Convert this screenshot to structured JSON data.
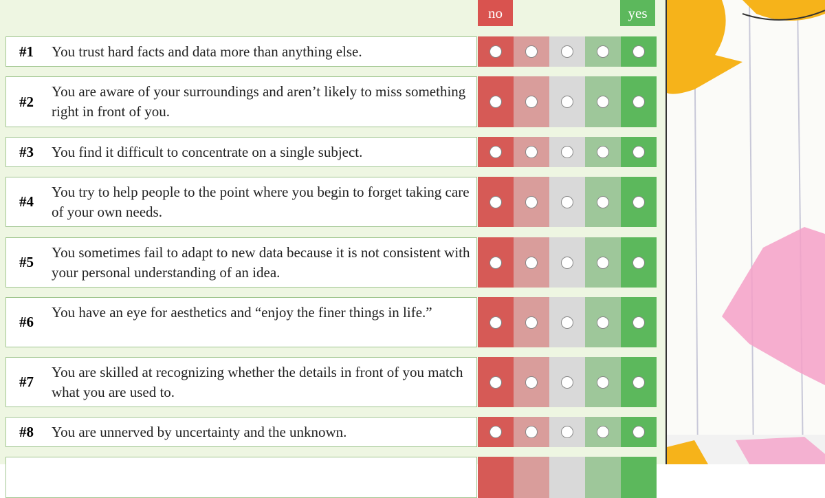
{
  "header": {
    "no": "no",
    "yes": "yes"
  },
  "questions": [
    {
      "number": "#1",
      "text": "You trust hard facts and data more than anything else."
    },
    {
      "number": "#2",
      "text": "You are aware of your surroundings and aren’t likely to miss something right in front of you."
    },
    {
      "number": "#3",
      "text": "You find it difficult to concentrate on a single subject."
    },
    {
      "number": "#4",
      "text": "You try to help people to the point where you begin to forget taking care of your own needs."
    },
    {
      "number": "#5",
      "text": "You sometimes fail to adapt to new data because it is not consistent with your personal understanding of an idea."
    },
    {
      "number": "#6",
      "text": "You have an eye for aesthetics and “enjoy the finer things in life.”"
    },
    {
      "number": "#7",
      "text": "You are skilled at recognizing whether the details in front of you match what you are used to."
    },
    {
      "number": "#8",
      "text": "You are unnerved by uncertainty and the unknown."
    }
  ]
}
